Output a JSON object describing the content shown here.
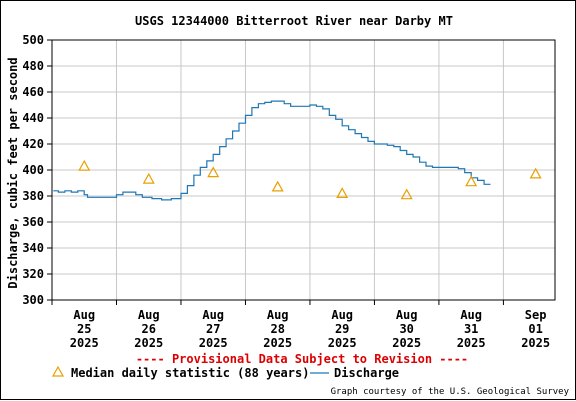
{
  "chart_data": {
    "type": "line",
    "title": "USGS 12344000 Bitterroot River near Darby MT",
    "ylabel": "Discharge, cubic feet per second",
    "xlabel": "",
    "ylim": [
      300,
      500
    ],
    "y_ticks": [
      300,
      320,
      340,
      360,
      380,
      400,
      420,
      440,
      460,
      480,
      500
    ],
    "grid": true,
    "x_ticks": [
      {
        "day": 0,
        "month": "Aug",
        "dom": "25",
        "year": "2025"
      },
      {
        "day": 1,
        "month": "Aug",
        "dom": "26",
        "year": "2025"
      },
      {
        "day": 2,
        "month": "Aug",
        "dom": "27",
        "year": "2025"
      },
      {
        "day": 3,
        "month": "Aug",
        "dom": "28",
        "year": "2025"
      },
      {
        "day": 4,
        "month": "Aug",
        "dom": "29",
        "year": "2025"
      },
      {
        "day": 5,
        "month": "Aug",
        "dom": "30",
        "year": "2025"
      },
      {
        "day": 6,
        "month": "Aug",
        "dom": "31",
        "year": "2025"
      },
      {
        "day": 7,
        "month": "Sep",
        "dom": "01",
        "year": "2025"
      }
    ],
    "xlim_days": [
      0,
      7.8
    ],
    "series": [
      {
        "name": "Discharge",
        "color": "#1f77b4",
        "style": "line",
        "points": [
          [
            0.02,
            384
          ],
          [
            0.1,
            383
          ],
          [
            0.2,
            384
          ],
          [
            0.3,
            383
          ],
          [
            0.4,
            384
          ],
          [
            0.5,
            381
          ],
          [
            0.55,
            379
          ],
          [
            0.7,
            379
          ],
          [
            0.9,
            379
          ],
          [
            1.0,
            381
          ],
          [
            1.1,
            383
          ],
          [
            1.2,
            383
          ],
          [
            1.3,
            381
          ],
          [
            1.4,
            379
          ],
          [
            1.55,
            378
          ],
          [
            1.7,
            377
          ],
          [
            1.85,
            378
          ],
          [
            2.0,
            382
          ],
          [
            2.1,
            388
          ],
          [
            2.2,
            396
          ],
          [
            2.3,
            402
          ],
          [
            2.4,
            407
          ],
          [
            2.5,
            412
          ],
          [
            2.6,
            418
          ],
          [
            2.7,
            424
          ],
          [
            2.8,
            430
          ],
          [
            2.9,
            436
          ],
          [
            3.0,
            442
          ],
          [
            3.1,
            448
          ],
          [
            3.2,
            451
          ],
          [
            3.3,
            452
          ],
          [
            3.4,
            453
          ],
          [
            3.5,
            453
          ],
          [
            3.6,
            451
          ],
          [
            3.7,
            449
          ],
          [
            3.8,
            449
          ],
          [
            3.9,
            449
          ],
          [
            4.0,
            450
          ],
          [
            4.1,
            449
          ],
          [
            4.2,
            447
          ],
          [
            4.3,
            442
          ],
          [
            4.4,
            439
          ],
          [
            4.5,
            434
          ],
          [
            4.6,
            431
          ],
          [
            4.7,
            428
          ],
          [
            4.8,
            425
          ],
          [
            4.9,
            422
          ],
          [
            5.0,
            420
          ],
          [
            5.1,
            420
          ],
          [
            5.2,
            419
          ],
          [
            5.3,
            418
          ],
          [
            5.4,
            415
          ],
          [
            5.5,
            412
          ],
          [
            5.6,
            410
          ],
          [
            5.7,
            406
          ],
          [
            5.8,
            403
          ],
          [
            5.9,
            402
          ],
          [
            6.0,
            402
          ],
          [
            6.1,
            402
          ],
          [
            6.2,
            402
          ],
          [
            6.3,
            401
          ],
          [
            6.4,
            398
          ],
          [
            6.5,
            394
          ],
          [
            6.6,
            392
          ],
          [
            6.7,
            389
          ],
          [
            6.8,
            389
          ]
        ]
      },
      {
        "name": "Median daily statistic (88 years)",
        "color": "#e8a000",
        "style": "triangle",
        "points": [
          [
            0.5,
            403
          ],
          [
            1.5,
            393
          ],
          [
            2.5,
            398
          ],
          [
            3.5,
            387
          ],
          [
            4.5,
            382
          ],
          [
            5.5,
            381
          ],
          [
            6.5,
            391
          ],
          [
            7.5,
            397
          ]
        ]
      }
    ]
  },
  "notice": "---- Provisional Data Subject to Revision ----",
  "legend": {
    "median_label": "Median daily statistic (88 years)",
    "discharge_label": "Discharge"
  },
  "credit": "Graph courtesy of the U.S. Geological Survey",
  "colors": {
    "notice": "#dd0000",
    "grid": "#c8c8c8",
    "axis": "#000000"
  }
}
